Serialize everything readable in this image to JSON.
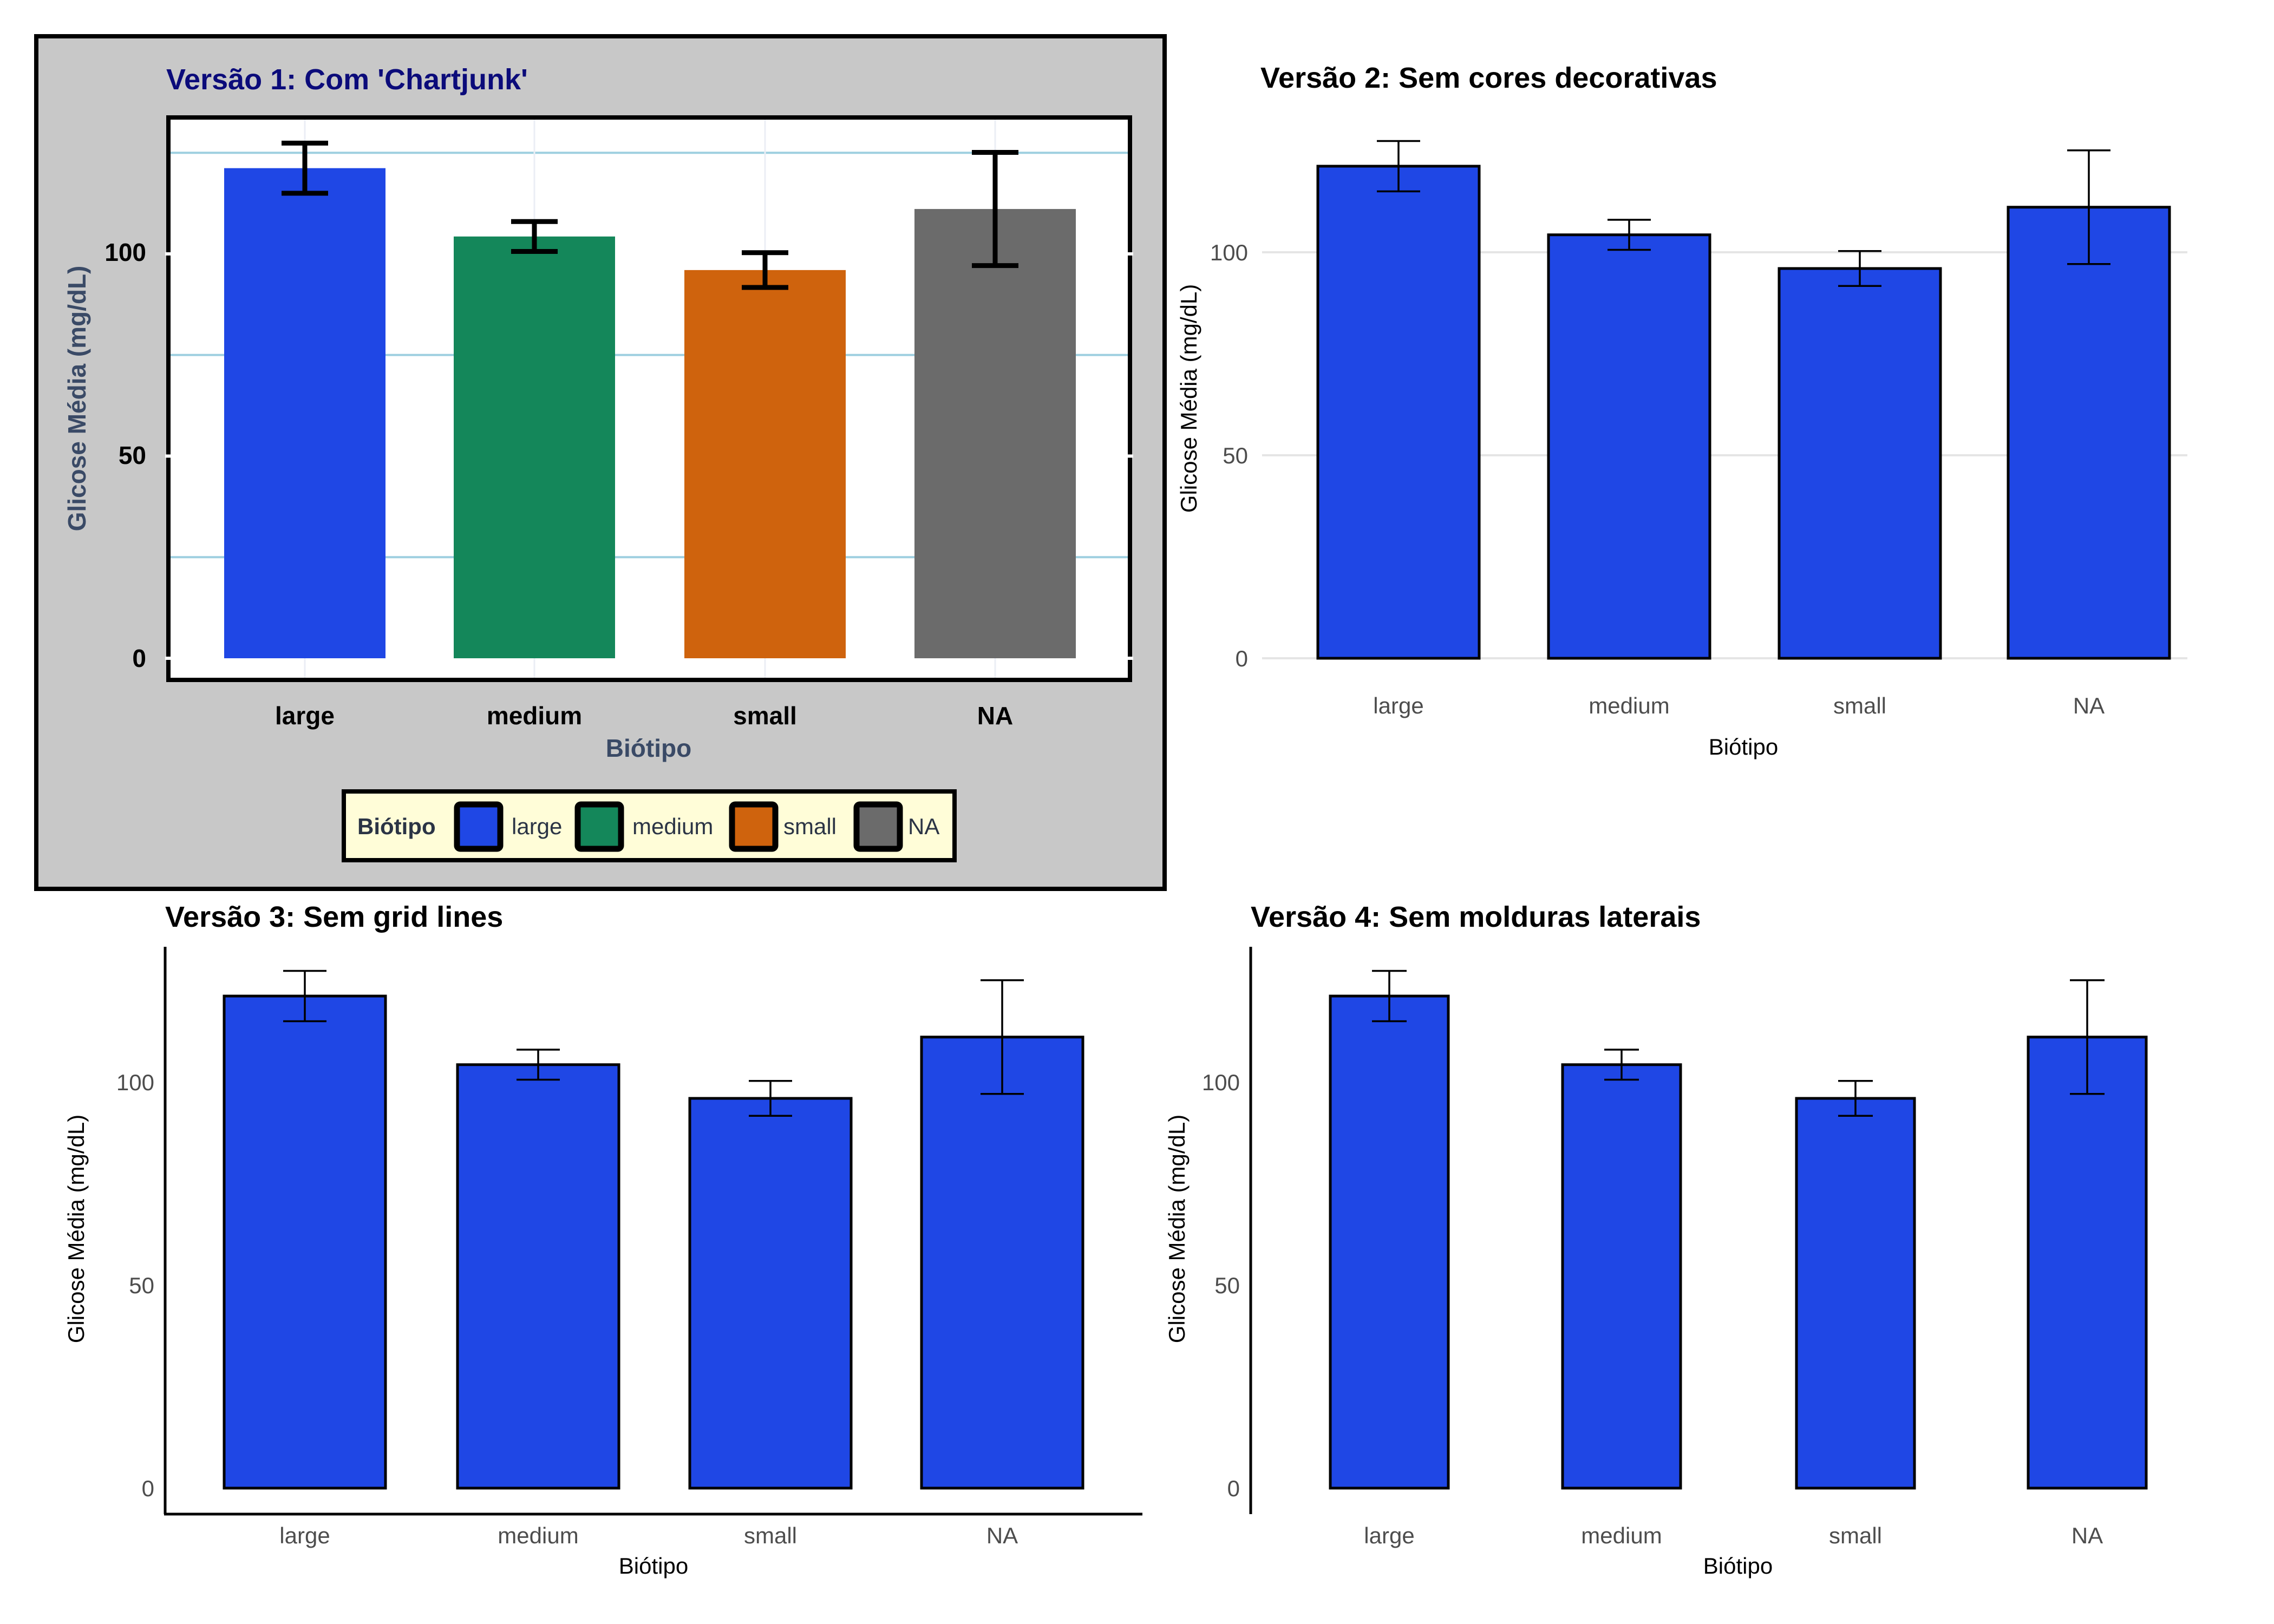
{
  "chart_data": [
    {
      "type": "bar",
      "title": "Versão 1: Com 'Chartjunk'",
      "categories": [
        "large",
        "medium",
        "small",
        "NA"
      ],
      "values": [
        121.2,
        104.3,
        96.0,
        111.1
      ],
      "error": [
        6.2,
        3.7,
        4.3,
        14.0
      ],
      "colors": [
        "#1f47e5",
        "#14875a",
        "#cf630d",
        "#6b6b6b"
      ],
      "xlabel": "Biótipo",
      "ylabel": "Glicose Média (mg/dL)",
      "yticks": [
        "0",
        "50",
        "100"
      ],
      "ylim": [
        0,
        133
      ],
      "grid": true,
      "legend": {
        "title": "Biótipo",
        "items": [
          "large",
          "medium",
          "small",
          "NA"
        ],
        "placement": "bottom"
      },
      "background": "#c8c8c8",
      "legend_background": "#fffdd8",
      "gridline_color": "#9ecfe0",
      "title_color": "#0b0b7a"
    },
    {
      "type": "bar",
      "title": "Versão 2: Sem cores decorativas",
      "categories": [
        "large",
        "medium",
        "small",
        "NA"
      ],
      "values": [
        121.2,
        104.3,
        96.0,
        111.1
      ],
      "error": [
        6.2,
        3.7,
        4.3,
        14.0
      ],
      "color": "#1f47e5",
      "xlabel": "Biótipo",
      "ylabel": "Glicose Média (mg/dL)",
      "yticks": [
        "0",
        "50",
        "100"
      ],
      "ylim": [
        0,
        133
      ],
      "grid": true
    },
    {
      "type": "bar",
      "title": "Versão 3: Sem grid lines",
      "categories": [
        "large",
        "medium",
        "small",
        "NA"
      ],
      "values": [
        121.2,
        104.3,
        96.0,
        111.1
      ],
      "error": [
        6.2,
        3.7,
        4.3,
        14.0
      ],
      "color": "#1f47e5",
      "xlabel": "Biótipo",
      "ylabel": "Glicose Média (mg/dL)",
      "yticks": [
        "0",
        "50",
        "100"
      ],
      "ylim": [
        0,
        133
      ],
      "grid": false
    },
    {
      "type": "bar",
      "title": "Versão 4: Sem molduras laterais",
      "categories": [
        "large",
        "medium",
        "small",
        "NA"
      ],
      "values": [
        121.2,
        104.3,
        96.0,
        111.1
      ],
      "error": [
        6.2,
        3.7,
        4.3,
        14.0
      ],
      "color": "#1f47e5",
      "xlabel": "Biótipo",
      "ylabel": "Glicose Média (mg/dL)",
      "yticks": [
        "0",
        "50",
        "100"
      ],
      "ylim": [
        0,
        133
      ],
      "grid": false
    }
  ]
}
